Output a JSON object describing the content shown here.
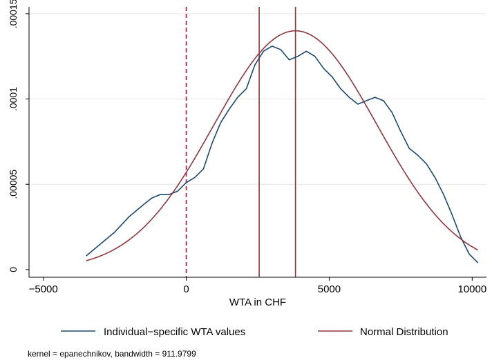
{
  "chart_data": {
    "type": "line",
    "xlabel": "WTA in CHF",
    "ylabel": "",
    "xlim": [
      -5500,
      10500
    ],
    "ylim": [
      -4.5e-06,
      0.000154
    ],
    "x_ticks": [
      -5000,
      0,
      5000,
      10000
    ],
    "x_tick_labels": [
      "−5000",
      "0",
      "5000",
      "10000"
    ],
    "y_ticks": [
      0,
      5e-05,
      0.0001,
      0.00015
    ],
    "y_tick_labels": [
      "0",
      ".00005",
      ".0001",
      ".00015"
    ],
    "grid": "horizontal",
    "legend_position": "bottom",
    "series": [
      {
        "name": "Individual−specific WTA values",
        "color": "#1a476f",
        "x": [
          -3500,
          -3000,
          -2500,
          -2000,
          -1500,
          -1200,
          -900,
          -600,
          -300,
          0,
          300,
          600,
          900,
          1200,
          1500,
          1800,
          2100,
          2400,
          2700,
          3000,
          3300,
          3600,
          3900,
          4200,
          4500,
          4800,
          5100,
          5400,
          5700,
          6000,
          6300,
          6600,
          6900,
          7200,
          7500,
          7800,
          8100,
          8400,
          8700,
          9000,
          9300,
          9600,
          9900,
          10200
        ],
        "y": [
          8e-06,
          1.5e-05,
          2.2e-05,
          3.1e-05,
          3.8e-05,
          4.2e-05,
          4.4e-05,
          4.4e-05,
          4.6e-05,
          5.1e-05,
          5.4e-05,
          5.9e-05,
          7.4e-05,
          8.6e-05,
          9.4e-05,
          0.000101,
          0.000106,
          0.00012,
          0.000128,
          0.000131,
          0.000129,
          0.000123,
          0.000125,
          0.000128,
          0.000125,
          0.000118,
          0.000113,
          0.000106,
          0.000101,
          9.7e-05,
          9.9e-05,
          0.000101,
          9.9e-05,
          9.2e-05,
          8.1e-05,
          7.1e-05,
          6.7e-05,
          6.2e-05,
          5.4e-05,
          4.4e-05,
          3.2e-05,
          1.9e-05,
          9e-06,
          4e-06
        ]
      },
      {
        "name": "Normal Distribution",
        "color": "#90353b",
        "distribution": {
          "mean": 3820,
          "sd": 2850,
          "peak": 0.00014
        },
        "x_range": [
          -3500,
          10200
        ]
      }
    ],
    "reference_lines": [
      {
        "x": 0,
        "style": "dashed",
        "color": "#c10534"
      },
      {
        "x": 2550,
        "style": "solid",
        "color": "#90353b"
      },
      {
        "x": 3820,
        "style": "solid",
        "color": "#90353b"
      }
    ],
    "note": "kernel = epanechnikov, bandwidth = 911.9799"
  }
}
